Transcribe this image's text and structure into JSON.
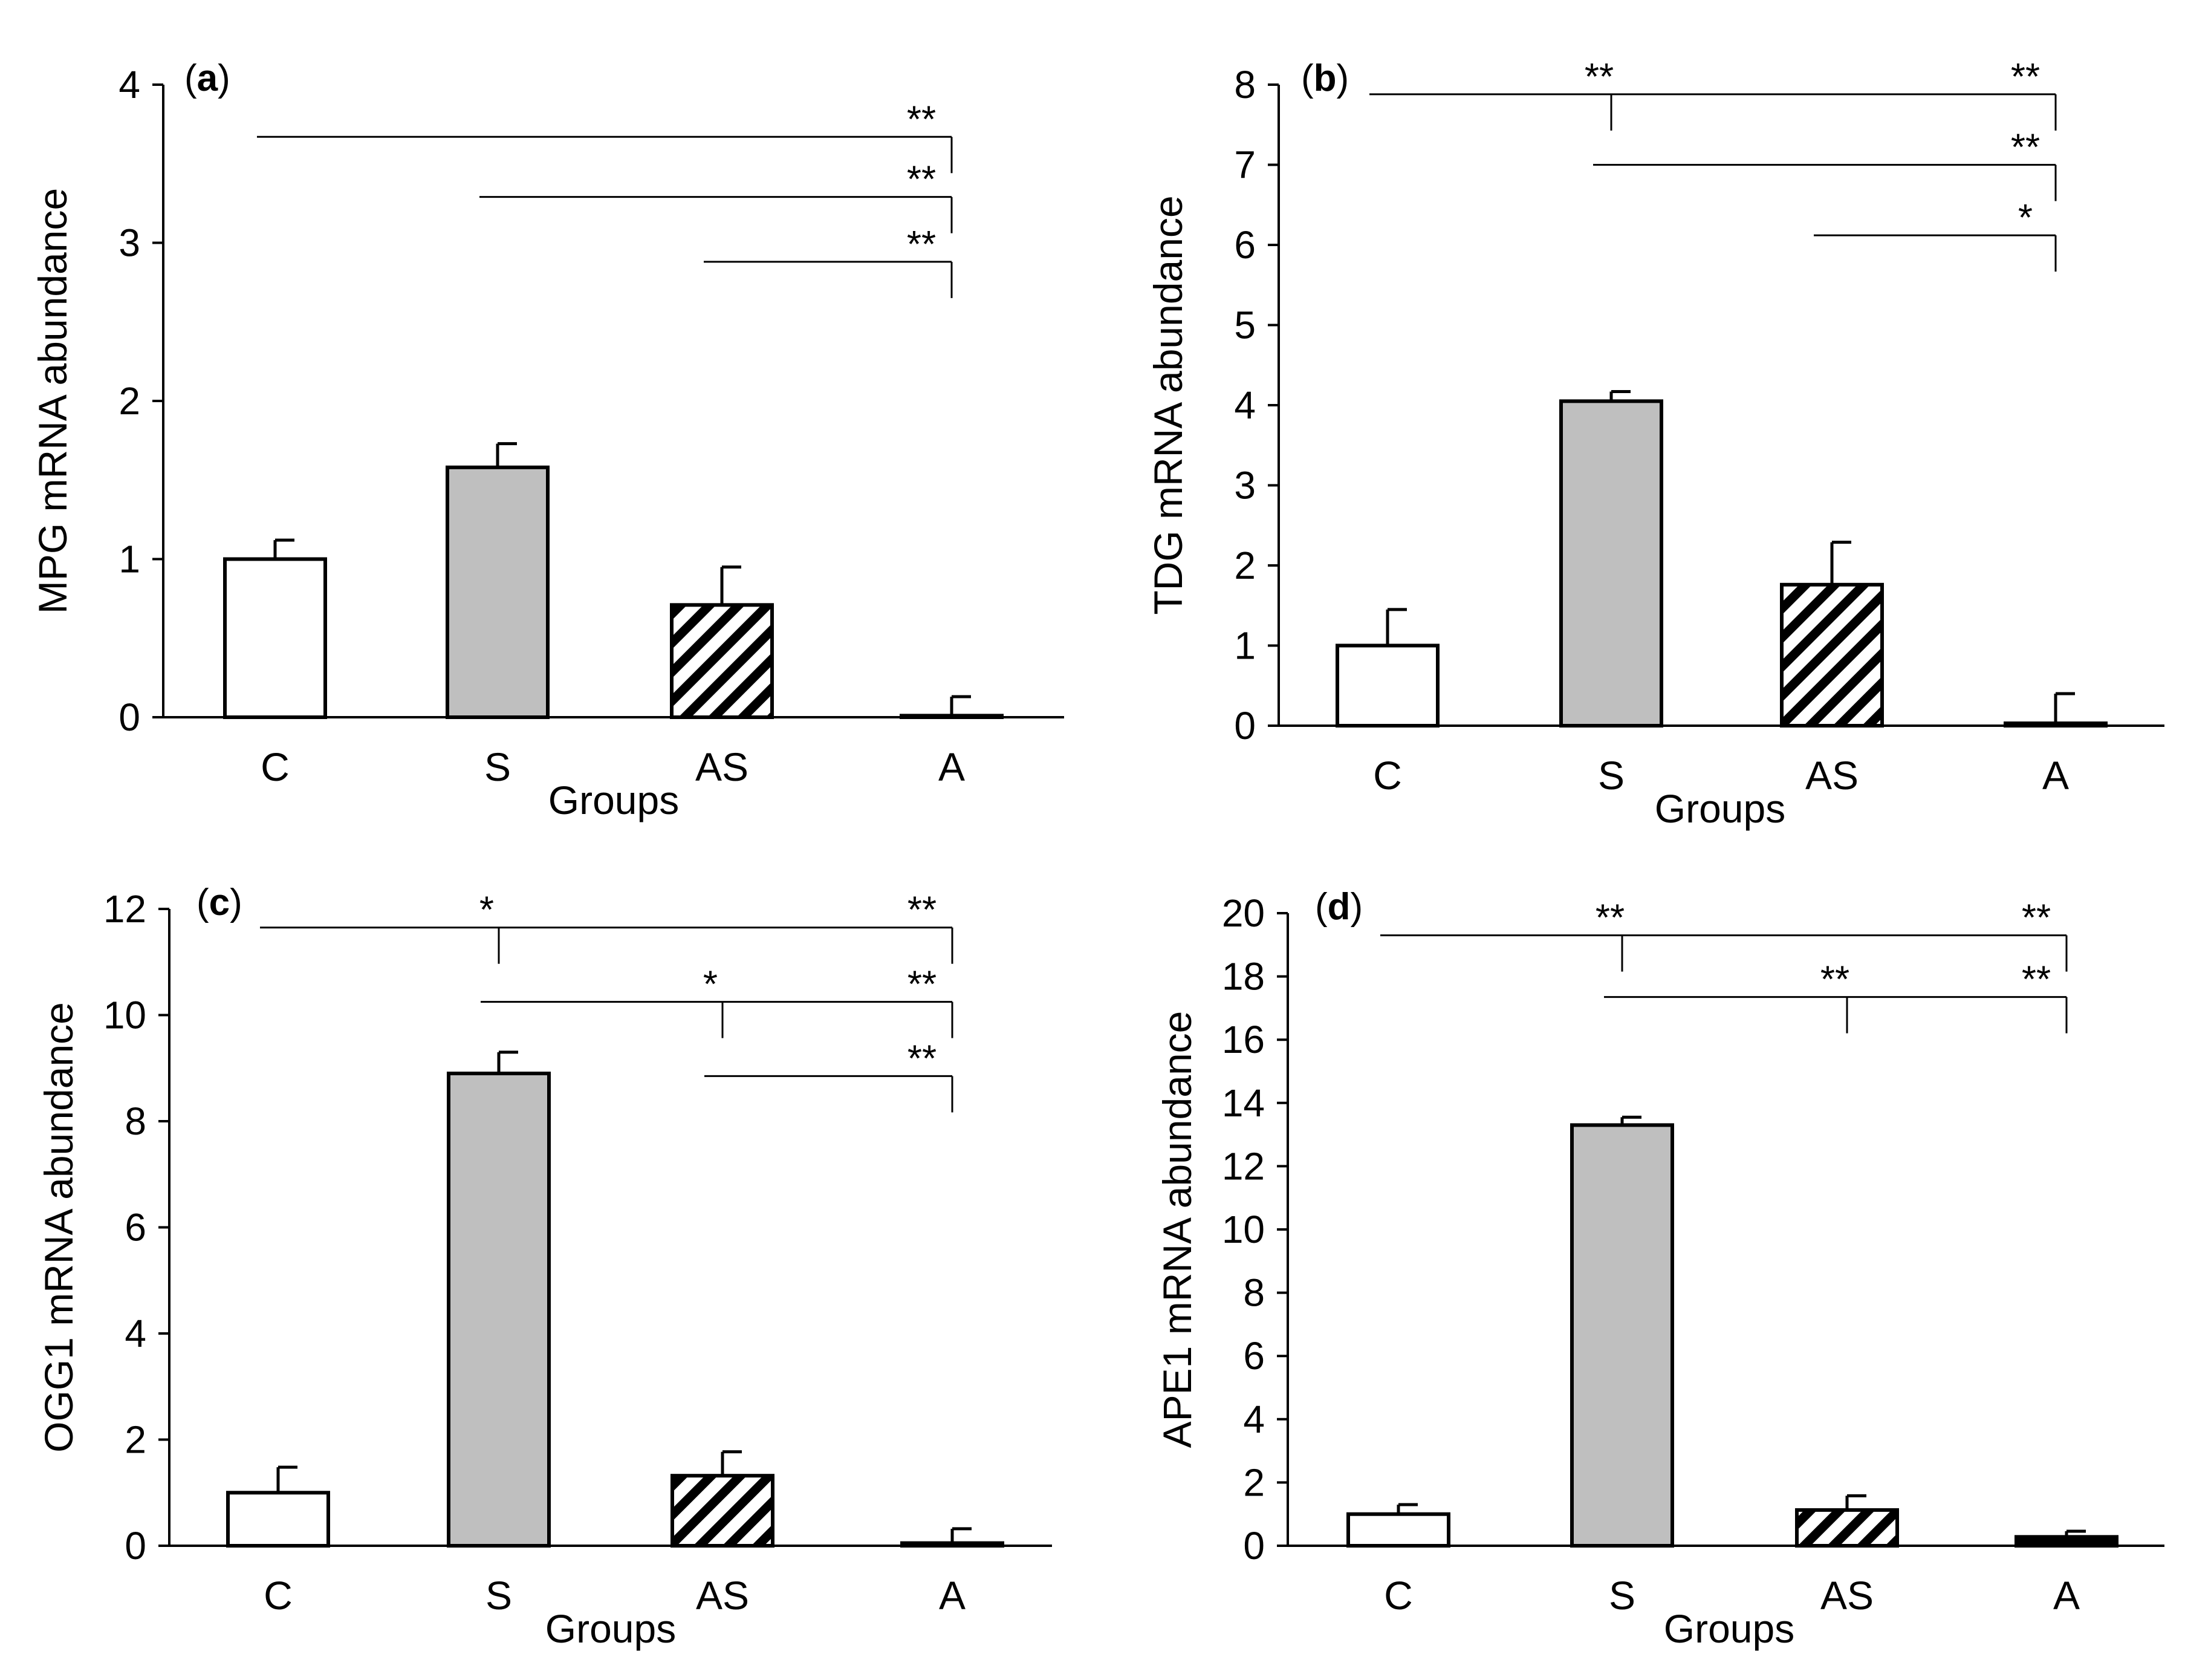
{
  "chart_data": [
    {
      "type": "bar",
      "panel_label": "(a)",
      "panel_letter": "a",
      "categories": [
        "C",
        "S",
        "AS",
        "A"
      ],
      "values": [
        1.0,
        1.58,
        0.71,
        0.01
      ],
      "errors": [
        0.12,
        0.15,
        0.24,
        0.12
      ],
      "xlabel": "Groups",
      "ylabel": "MPG mRNA abundance",
      "ylim": [
        0,
        4
      ],
      "yticks": [
        0,
        1,
        2,
        3,
        4
      ],
      "significance": [
        {
          "from": "C",
          "to": "A",
          "y": 3.67,
          "labels": [
            {
              "at": "A",
              "text": "**"
            }
          ]
        },
        {
          "from": "S",
          "to": "A",
          "y": 3.29,
          "labels": [
            {
              "at": "A",
              "text": "**"
            }
          ]
        },
        {
          "from": "AS",
          "to": "A",
          "y": 2.88,
          "labels": [
            {
              "at": "A",
              "text": "**"
            }
          ]
        }
      ]
    },
    {
      "type": "bar",
      "panel_label": "(b)",
      "panel_letter": "b",
      "categories": [
        "C",
        "S",
        "AS",
        "A"
      ],
      "values": [
        1.0,
        4.05,
        1.76,
        0.03
      ],
      "errors": [
        0.45,
        0.12,
        0.53,
        0.37
      ],
      "xlabel": "Groups",
      "ylabel": "TDG mRNA abundance",
      "ylim": [
        0,
        8
      ],
      "yticks": [
        0,
        1,
        2,
        3,
        4,
        5,
        6,
        7,
        8
      ],
      "significance": [
        {
          "from": "C",
          "to": "A",
          "y": 7.88,
          "labels": [
            {
              "at": "S",
              "text": "**"
            },
            {
              "at": "A",
              "text": "**"
            }
          ]
        },
        {
          "from": "S",
          "to": "A",
          "y": 7.0,
          "labels": [
            {
              "at": "A",
              "text": "**"
            }
          ]
        },
        {
          "from": "AS",
          "to": "A",
          "y": 6.12,
          "labels": [
            {
              "at": "A",
              "text": "*"
            }
          ]
        }
      ]
    },
    {
      "type": "bar",
      "panel_label": "(c)",
      "panel_letter": "c",
      "categories": [
        "C",
        "S",
        "AS",
        "A"
      ],
      "values": [
        1.0,
        8.9,
        1.32,
        0.05
      ],
      "errors": [
        0.48,
        0.4,
        0.45,
        0.27
      ],
      "xlabel": "Groups",
      "ylabel": "OGG1 mRNA abundance",
      "ylim": [
        0,
        12
      ],
      "yticks": [
        0,
        2,
        4,
        6,
        8,
        10,
        12
      ],
      "significance": [
        {
          "from": "C",
          "to": "A",
          "y": 11.65,
          "labels": [
            {
              "at": "S",
              "text": "*"
            },
            {
              "at": "A",
              "text": "**"
            }
          ]
        },
        {
          "from": "S",
          "to": "A",
          "y": 10.25,
          "labels": [
            {
              "at": "AS",
              "text": "*"
            },
            {
              "at": "A",
              "text": "**"
            }
          ]
        },
        {
          "from": "AS",
          "to": "A",
          "y": 8.85,
          "labels": [
            {
              "at": "A",
              "text": "**"
            }
          ]
        }
      ]
    },
    {
      "type": "bar",
      "panel_label": "(d)",
      "panel_letter": "d",
      "categories": [
        "C",
        "S",
        "AS",
        "A"
      ],
      "values": [
        1.0,
        13.3,
        1.13,
        0.28
      ],
      "errors": [
        0.3,
        0.25,
        0.45,
        0.18
      ],
      "xlabel": "Groups",
      "ylabel": "APE1 mRNA abundance",
      "ylim": [
        0,
        20
      ],
      "yticks": [
        0,
        2,
        4,
        6,
        8,
        10,
        12,
        14,
        16,
        18,
        20
      ],
      "significance": [
        {
          "from": "C",
          "to": "A",
          "y": 19.3,
          "labels": [
            {
              "at": "S",
              "text": "**"
            },
            {
              "at": "A",
              "text": "**"
            }
          ]
        },
        {
          "from": "S",
          "to": "A",
          "y": 17.35,
          "labels": [
            {
              "at": "AS",
              "text": "**"
            },
            {
              "at": "A",
              "text": "**"
            }
          ]
        }
      ]
    }
  ],
  "styles": {
    "bar_fills": [
      "#ffffff",
      "#bfbfbf",
      "hatch",
      "#000000"
    ],
    "stroke": "#000000"
  }
}
